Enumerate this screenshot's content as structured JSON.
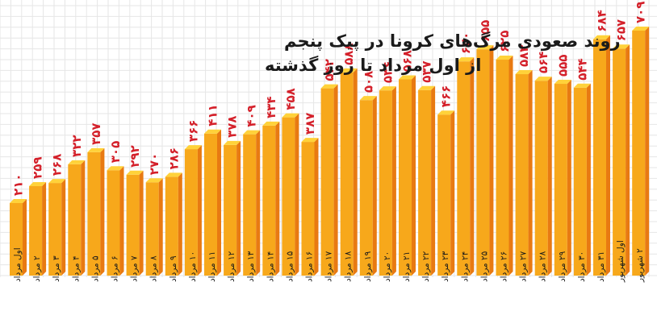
{
  "chart_data": {
    "type": "bar",
    "title_lines": [
      "روند صعودی مرگ‌های کرونا در پیک پنجم",
      "از اول مرداد تا روز گذشته"
    ],
    "categories": [
      "اول مرداد",
      "۲ مرداد",
      "۳ مرداد",
      "۴ مرداد",
      "۵ مرداد",
      "۶ مرداد",
      "۷ مرداد",
      "۸ مرداد",
      "۹ مرداد",
      "۱۰ مرداد",
      "۱۱ مرداد",
      "۱۲ مرداد",
      "۱۳ مرداد",
      "۱۴ مرداد",
      "۱۵ مرداد",
      "۱۶ مرداد",
      "۱۷ مرداد",
      "۱۸ مرداد",
      "۱۹ مرداد",
      "۲۰ مرداد",
      "۲۱ مرداد",
      "۲۲ مرداد",
      "۲۳ مرداد",
      "۲۴ مرداد",
      "۲۵ مرداد",
      "۲۶ مرداد",
      "۲۷ مرداد",
      "۲۸ مرداد",
      "۲۹ مرداد",
      "۳۰ مرداد",
      "۳۱ مرداد",
      "اول شهریور",
      "۲ شهریور"
    ],
    "values": [
      210,
      259,
      268,
      322,
      357,
      305,
      292,
      270,
      286,
      366,
      411,
      378,
      409,
      434,
      458,
      387,
      542,
      588,
      508,
      536,
      568,
      537,
      466,
      620,
      655,
      625,
      583,
      564,
      555,
      544,
      684,
      657,
      709
    ],
    "value_labels": [
      "۲۱۰",
      "۲۵۹",
      "۲۶۸",
      "۳۲۲",
      "۳۵۷",
      "۳۰۵",
      "۲۹۲",
      "۲۷۰",
      "۲۸۶",
      "۳۶۶",
      "۴۱۱",
      "۳۷۸",
      "۴۰۹",
      "۴۳۴",
      "۴۵۸",
      "۳۸۷",
      "۵۴۲",
      "۵۸۸",
      "۵۰۸",
      "۵۳۶",
      "۵۶۸",
      "۵۳۷",
      "۴۶۶",
      "۶۲۰",
      "۶۵۵",
      "۶۲۵",
      "۵۸۳",
      "۵۶۴",
      "۵۵۵",
      "۵۴۴",
      "۶۸۴",
      "۶۵۷",
      "۷۰۹"
    ],
    "ylim": [
      0,
      709
    ],
    "grid": true,
    "legend": "none",
    "colors": {
      "bar_front": "#f7a81b",
      "bar_side": "#e87a12",
      "bar_top": "#ffd23a",
      "value_label": "#d4202a",
      "grid": "#e6e6e6",
      "title": "#1a1a1a"
    }
  }
}
